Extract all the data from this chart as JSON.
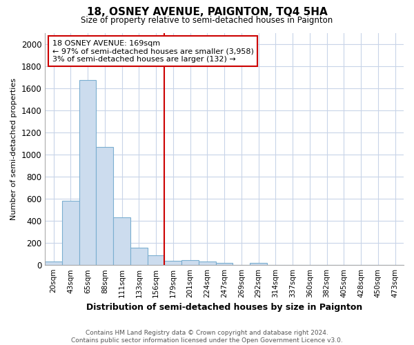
{
  "title": "18, OSNEY AVENUE, PAIGNTON, TQ4 5HA",
  "subtitle": "Size of property relative to semi-detached houses in Paignton",
  "xlabel": "Distribution of semi-detached houses by size in Paignton",
  "ylabel_text": "Number of semi-detached properties",
  "categories": [
    "20sqm",
    "43sqm",
    "65sqm",
    "88sqm",
    "111sqm",
    "133sqm",
    "156sqm",
    "179sqm",
    "201sqm",
    "224sqm",
    "247sqm",
    "269sqm",
    "292sqm",
    "314sqm",
    "337sqm",
    "360sqm",
    "382sqm",
    "405sqm",
    "428sqm",
    "450sqm",
    "473sqm"
  ],
  "values": [
    30,
    580,
    1670,
    1070,
    430,
    160,
    90,
    40,
    42,
    30,
    18,
    0,
    18,
    0,
    0,
    0,
    0,
    0,
    0,
    0,
    0
  ],
  "bar_color": "#ccdcee",
  "bar_edge_color": "#7aaed0",
  "red_line_index": 7,
  "annotation_title": "18 OSNEY AVENUE: 169sqm",
  "annotation_line1": "← 97% of semi-detached houses are smaller (3,958)",
  "annotation_line2": "3% of semi-detached houses are larger (132) →",
  "annotation_box_color": "#ffffff",
  "annotation_box_edge": "#cc0000",
  "red_line_color": "#cc0000",
  "grid_color": "#c8d4e8",
  "bg_color": "#ffffff",
  "footer1": "Contains HM Land Registry data © Crown copyright and database right 2024.",
  "footer2": "Contains public sector information licensed under the Open Government Licence v3.0.",
  "ylim": [
    0,
    2100
  ],
  "yticks": [
    0,
    200,
    400,
    600,
    800,
    1000,
    1200,
    1400,
    1600,
    1800,
    2000
  ]
}
